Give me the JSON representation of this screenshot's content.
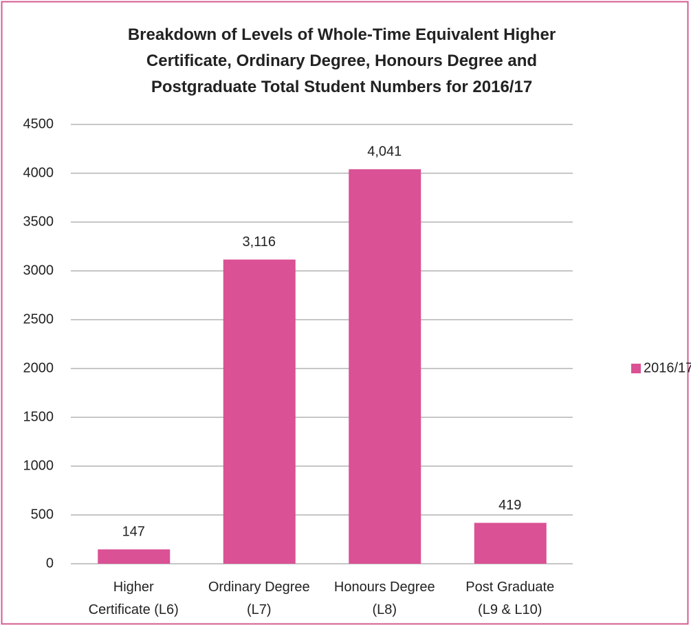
{
  "chart_data": {
    "type": "bar",
    "title": "Breakdown of Levels of Whole-Time Equivalent Higher\nCertificate, Ordinary Degree, Honours Degree and\nPostgraduate Total Student Numbers for 2016/17",
    "categories": [
      "Higher\nCertificate (L6)",
      "Ordinary Degree\n(L7)",
      "Honours Degree\n(L8)",
      "Post Graduate\n(L9 & L10)"
    ],
    "series": [
      {
        "name": "2016/17",
        "color": "#da5195",
        "values": [
          147,
          3116,
          4041,
          419
        ],
        "value_labels": [
          "147",
          "3,116",
          "4,041",
          "419"
        ]
      }
    ],
    "ylim": [
      0,
      4500
    ],
    "yticks": [
      0,
      500,
      1000,
      1500,
      2000,
      2500,
      3000,
      3500,
      4000,
      4500
    ],
    "grid": true,
    "legend": "right"
  }
}
